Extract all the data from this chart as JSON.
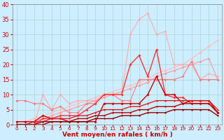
{
  "x": [
    0,
    1,
    2,
    3,
    4,
    5,
    6,
    7,
    8,
    9,
    10,
    11,
    12,
    13,
    14,
    15,
    16,
    17,
    18,
    19,
    20,
    21,
    22,
    23
  ],
  "series": [
    {
      "color": "#ffbbbb",
      "linewidth": 0.8,
      "markersize": 2.0,
      "y": [
        0,
        1,
        2,
        3,
        4,
        5,
        6,
        7,
        8,
        9,
        10,
        11,
        12,
        13,
        14,
        15,
        17,
        18,
        19,
        20,
        22,
        24,
        26,
        28
      ]
    },
    {
      "color": "#ffaaaa",
      "linewidth": 0.8,
      "markersize": 2.0,
      "y": [
        0,
        0,
        0,
        10,
        5,
        10,
        7,
        8,
        8,
        8,
        10,
        10,
        10,
        30,
        35,
        37,
        30,
        31,
        20,
        20,
        20,
        15,
        17,
        16
      ]
    },
    {
      "color": "#ff9999",
      "linewidth": 0.8,
      "markersize": 2.0,
      "y": [
        0,
        0,
        1,
        2,
        3,
        4,
        5,
        6,
        7,
        8,
        9,
        10,
        11,
        12,
        13,
        14,
        16,
        17,
        18,
        19,
        20,
        21,
        22,
        15
      ]
    },
    {
      "color": "#ff7777",
      "linewidth": 0.8,
      "markersize": 2.0,
      "y": [
        8,
        8,
        7,
        7,
        5,
        6,
        4,
        4,
        7,
        7,
        10,
        10,
        8,
        8,
        15,
        15,
        15,
        15,
        15,
        16,
        21,
        15,
        15,
        15
      ]
    },
    {
      "color": "#ff3333",
      "linewidth": 1.0,
      "markersize": 2.0,
      "y": [
        0,
        0,
        0,
        2,
        2,
        3,
        3,
        3,
        5,
        7,
        10,
        10,
        10,
        20,
        23,
        16,
        25,
        10,
        9,
        9,
        7,
        7,
        7,
        4
      ]
    },
    {
      "color": "#cc0000",
      "linewidth": 1.0,
      "markersize": 2.0,
      "y": [
        1,
        1,
        1,
        3,
        2,
        2,
        1,
        1,
        1,
        1,
        7,
        7,
        7,
        7,
        7,
        10,
        16,
        10,
        10,
        7,
        8,
        8,
        8,
        4
      ]
    },
    {
      "color": "#dd2222",
      "linewidth": 1.0,
      "markersize": 1.5,
      "y": [
        0,
        0,
        1,
        1,
        2,
        2,
        2,
        3,
        3,
        4,
        5,
        5,
        5,
        6,
        6,
        7,
        8,
        8,
        8,
        8,
        8,
        8,
        8,
        5
      ]
    },
    {
      "color": "#bb0000",
      "linewidth": 1.0,
      "markersize": 1.5,
      "y": [
        0,
        0,
        0,
        1,
        1,
        1,
        1,
        2,
        2,
        3,
        3,
        4,
        4,
        4,
        5,
        5,
        6,
        6,
        6,
        7,
        7,
        7,
        7,
        4
      ]
    },
    {
      "color": "#990000",
      "linewidth": 1.0,
      "markersize": 1.5,
      "y": [
        0,
        0,
        0,
        0,
        1,
        1,
        1,
        1,
        1,
        2,
        2,
        2,
        3,
        3,
        3,
        4,
        4,
        4,
        5,
        5,
        5,
        5,
        5,
        3
      ]
    }
  ],
  "xlabel": "Vent moyen/en rafales ( km/h )",
  "xlim": [
    -0.5,
    23.5
  ],
  "ylim": [
    0,
    40
  ],
  "yticks": [
    0,
    5,
    10,
    15,
    20,
    25,
    30,
    35,
    40
  ],
  "xticks": [
    0,
    1,
    2,
    3,
    4,
    5,
    6,
    7,
    8,
    9,
    10,
    11,
    12,
    13,
    14,
    15,
    16,
    17,
    18,
    19,
    20,
    21,
    22,
    23
  ],
  "bg_color": "#cceeff",
  "grid_color": "#aacccc",
  "xlabel_color": "#cc0000",
  "tick_color": "#cc0000",
  "xlabel_fontsize": 6.5,
  "ytick_fontsize": 6,
  "xtick_fontsize": 5.2
}
